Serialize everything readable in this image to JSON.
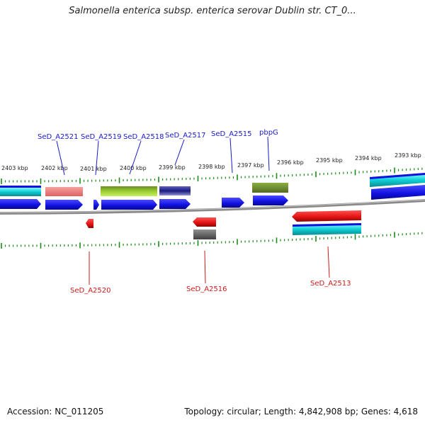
{
  "title": "Salmonella enterica subsp. enterica serovar Dublin str. CT_0...",
  "footer": {
    "accession": "Accession: NC_011205",
    "summary": "Topology: circular; Length: 4,842,908 bp; Genes: 4,618"
  },
  "scale_labels": [
    "2403 kbp",
    "2402 kbp",
    "2401 kbp",
    "2400 kbp",
    "2399 kbp",
    "2398 kbp",
    "2397 kbp",
    "2396 kbp",
    "2395 kbp",
    "2394 kbp",
    "2393 kbp"
  ],
  "gene_labels_plus": [
    "SeD_A2521",
    "SeD_A2519",
    "SeD_A2518",
    "SeD_A2517",
    "SeD_A2515",
    "pbpG"
  ],
  "gene_labels_minus": [
    "SeD_A2520",
    "SeD_A2516",
    "SeD_A2513"
  ],
  "colors": {
    "plus_cds": "#1010e0",
    "minus_cds": "#e01010",
    "backbone": "#808080",
    "tick": "#1a8a1a",
    "cyan": "#10d0d8",
    "salmon": "#f08080",
    "lime": "#9acd32",
    "navy": "#1a1a80",
    "olive": "#6b8e23",
    "gray": "#606060"
  }
}
